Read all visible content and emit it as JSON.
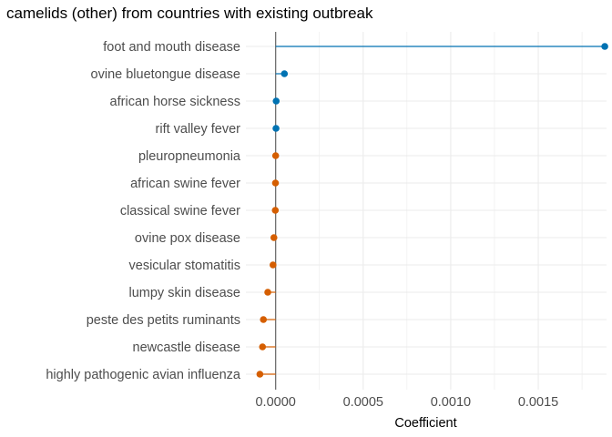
{
  "chart_data": {
    "type": "lollipop",
    "title": "camelids (other) from countries with existing outbreak",
    "xlabel": "Coefficient",
    "ylabel": "",
    "xlim": [
      -0.00017,
      0.00189
    ],
    "x_ticks": [
      0.0,
      0.0005,
      0.001,
      0.0015
    ],
    "x_tick_labels": [
      "0.0000",
      "0.0005",
      "0.0010",
      "0.0015"
    ],
    "baseline": 0,
    "grid": true,
    "colors": {
      "positive": "#0072b2",
      "negative": "#d55e00",
      "baseline": "#666666",
      "grid": "#ebebeb"
    },
    "categories": [
      "foot and mouth disease",
      "ovine bluetongue disease",
      "african horse sickness",
      "rift valley fever",
      "pleuropneumonia",
      "african swine fever",
      "classical swine fever",
      "ovine pox disease",
      "vesicular stomatitis",
      "lumpy skin disease",
      "peste des petits ruminants",
      "newcastle disease",
      "highly pathogenic avian influenza"
    ],
    "values": [
      0.00188,
      5e-05,
      3e-06,
      2e-06,
      0.0,
      -1e-06,
      -2e-06,
      -1e-05,
      -1.5e-05,
      -4.5e-05,
      -7e-05,
      -7.5e-05,
      -9e-05
    ]
  }
}
